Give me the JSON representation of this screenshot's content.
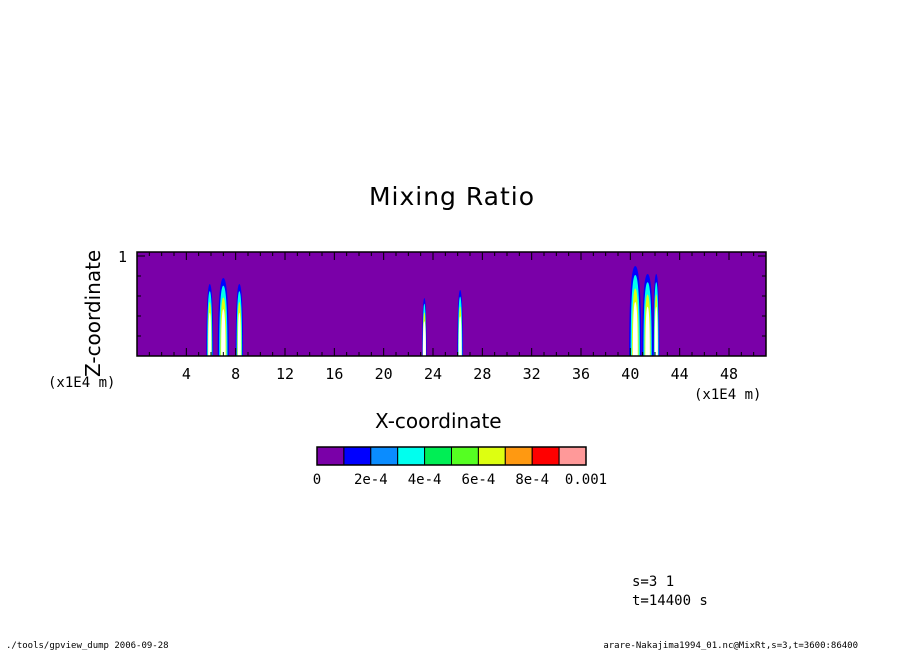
{
  "chart_data": {
    "type": "heatmap",
    "title": "Mixing Ratio",
    "xlabel": "X-coordinate",
    "ylabel": "Z-coordinate",
    "x_unit_label": "(x1E4 m)",
    "y_unit_label": "(x1E4 m)",
    "xlim": [
      0,
      51
    ],
    "ylim": [
      0,
      1.04
    ],
    "x_ticks": [
      4,
      8,
      12,
      16,
      20,
      24,
      28,
      32,
      36,
      40,
      44,
      48
    ],
    "y_ticks": [
      1
    ],
    "background_level_color": "#7a00a8",
    "colorbar": {
      "levels": [
        0,
        0.0001,
        0.0002,
        0.0003,
        0.0004,
        0.0005,
        0.0006,
        0.0007,
        0.0008,
        0.0009,
        0.001
      ],
      "colors": [
        "#7a00a8",
        "#0000ff",
        "#0a8cff",
        "#00ffee",
        "#00ee55",
        "#55ff22",
        "#ddff11",
        "#ff9911",
        "#ff0000",
        "#ff9999"
      ],
      "tick_labels": [
        "0",
        "2e-4",
        "4e-4",
        "6e-4",
        "8e-4",
        "0.001"
      ]
    },
    "plumes": [
      {
        "x_center": 5.9,
        "z_top": 0.72,
        "width": 0.55
      },
      {
        "x_center": 7.0,
        "z_top": 0.78,
        "width": 0.9
      },
      {
        "x_center": 8.3,
        "z_top": 0.72,
        "width": 0.6
      },
      {
        "x_center": 23.3,
        "z_top": 0.58,
        "width": 0.35
      },
      {
        "x_center": 26.2,
        "z_top": 0.66,
        "width": 0.45
      },
      {
        "x_center": 40.4,
        "z_top": 0.9,
        "width": 1.0
      },
      {
        "x_center": 41.4,
        "z_top": 0.82,
        "width": 0.9
      },
      {
        "x_center": 42.1,
        "z_top": 0.82,
        "width": 0.5
      }
    ]
  },
  "status": {
    "step": "s=3 1",
    "time": "t=14400 s"
  },
  "footer": {
    "left": "./tools/gpview_dump  2006-09-28",
    "right": "arare-Nakajima1994_01.nc@MixRt,s=3,t=3600:86400"
  }
}
